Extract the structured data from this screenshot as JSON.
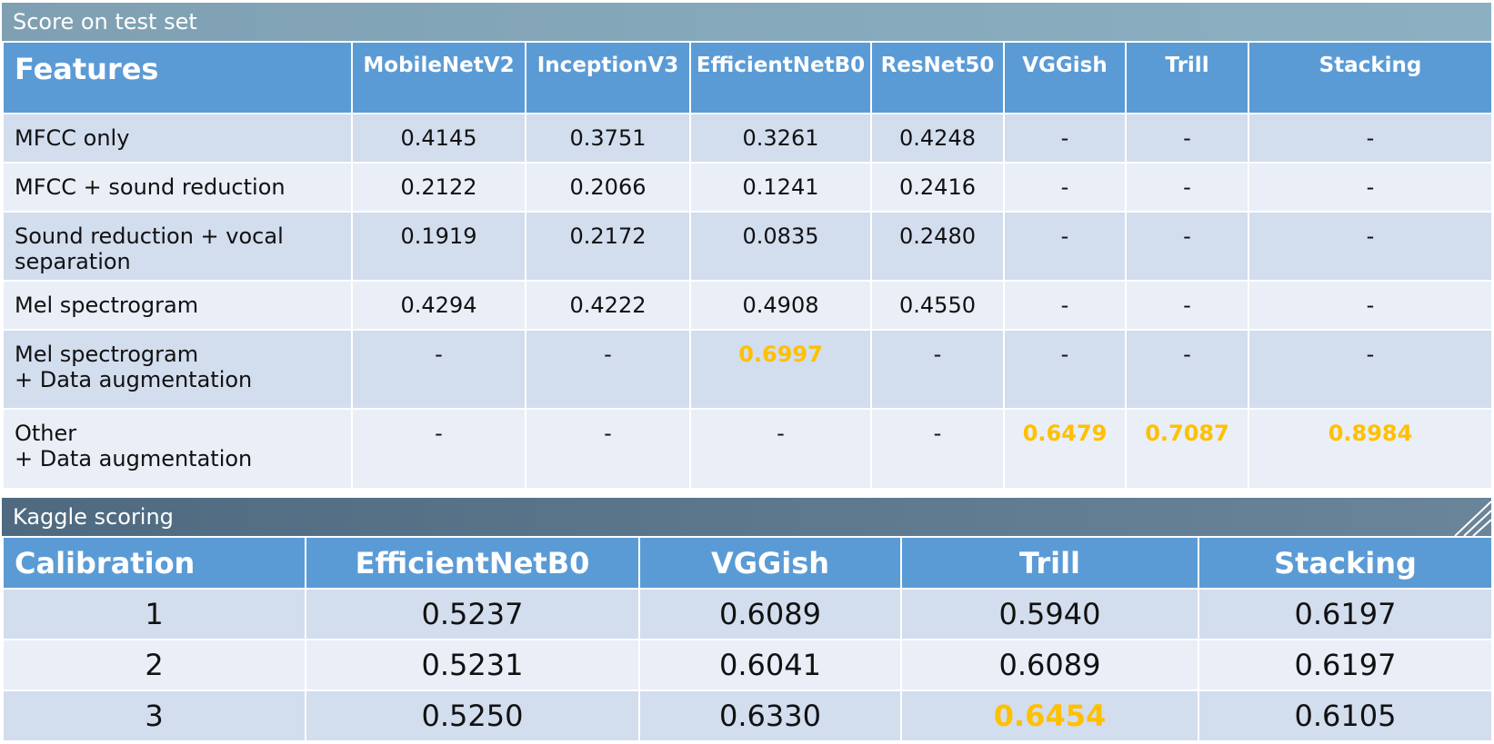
{
  "test_set": {
    "title": "Score on test set",
    "headers": [
      "Features",
      "MobileNetV2",
      "InceptionV3",
      "EfficientNetB0",
      "ResNet50",
      "VGGish",
      "Trill",
      "Stacking"
    ],
    "rows": [
      {
        "feature": "MFCC only",
        "values": [
          "0.4145",
          "0.3751",
          "0.3261",
          "0.4248",
          "-",
          "-",
          "-"
        ]
      },
      {
        "feature": "MFCC + sound reduction",
        "values": [
          "0.2122",
          "0.2066",
          "0.1241",
          "0.2416",
          "-",
          "-",
          "-"
        ]
      },
      {
        "feature": "Sound reduction + vocal separation",
        "values": [
          "0.1919",
          "0.2172",
          "0.0835",
          "0.2480",
          "-",
          "-",
          "-"
        ]
      },
      {
        "feature": "Mel spectrogram",
        "values": [
          "0.4294",
          "0.4222",
          "0.4908",
          "0.4550",
          "-",
          "-",
          "-"
        ]
      },
      {
        "feature_lines": [
          "Mel spectrogram",
          "+ Data augmentation"
        ],
        "values": [
          "-",
          "-",
          "0.6997",
          "-",
          "-",
          "-",
          "-"
        ]
      },
      {
        "feature_lines": [
          "Other",
          "+ Data augmentation"
        ],
        "values": [
          "-",
          "-",
          "-",
          "-",
          "0.6479",
          "0.7087",
          "0.8984"
        ]
      }
    ]
  },
  "kaggle": {
    "title": "Kaggle scoring",
    "headers": [
      "Calibration",
      "EfficientNetB0",
      "VGGish",
      "Trill",
      "Stacking"
    ],
    "rows": [
      {
        "calibration": "1",
        "values": [
          "0.5237",
          "0.6089",
          "0.5940",
          "0.6197"
        ]
      },
      {
        "calibration": "2",
        "values": [
          "0.5231",
          "0.6041",
          "0.6089",
          "0.6197"
        ]
      },
      {
        "calibration": "3",
        "values": [
          "0.5250",
          "0.6330",
          "0.6454",
          "0.6105"
        ]
      }
    ]
  },
  "colors": {
    "header_blue": "#5b9bd5",
    "highlight": "#ffc000",
    "row_dark": "#d2ddee",
    "row_light": "#e9eef7"
  }
}
